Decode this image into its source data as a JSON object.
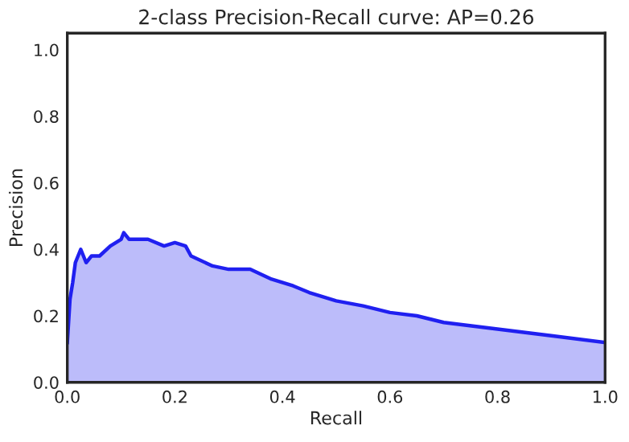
{
  "chart_data": {
    "type": "area",
    "title": "2-class Precision-Recall curve: AP=0.26",
    "xlabel": "Recall",
    "ylabel": "Precision",
    "series": [
      {
        "color": "#2020f0",
        "x": [
          0,
          0.005,
          0.01,
          0.015,
          0.025,
          0.035,
          0.045,
          0.06,
          0.08,
          0.1,
          0.105,
          0.115,
          0.15,
          0.18,
          0.2,
          0.22,
          0.23,
          0.27,
          0.3,
          0.34,
          0.38,
          0.42,
          0.45,
          0.5,
          0.55,
          0.6,
          0.65,
          0.7,
          0.8,
          0.9,
          1.0
        ],
        "values": [
          0.12,
          0.25,
          0.3,
          0.36,
          0.4,
          0.36,
          0.38,
          0.38,
          0.41,
          0.43,
          0.45,
          0.43,
          0.43,
          0.41,
          0.42,
          0.41,
          0.38,
          0.35,
          0.34,
          0.34,
          0.31,
          0.29,
          0.27,
          0.245,
          0.23,
          0.21,
          0.2,
          0.18,
          0.16,
          0.14,
          0.12
        ]
      }
    ],
    "xlim": [
      0,
      1
    ],
    "ylim": [
      0,
      1.05
    ],
    "xticks": [
      {
        "value": 0,
        "label": "0.0"
      },
      {
        "value": 0.2,
        "label": "0.2"
      },
      {
        "value": 0.4,
        "label": "0.4"
      },
      {
        "value": 0.6,
        "label": "0.6"
      },
      {
        "value": 0.8,
        "label": "0.8"
      },
      {
        "value": 1,
        "label": "1.0"
      }
    ],
    "yticks": [
      {
        "value": 0,
        "label": "0.0"
      },
      {
        "value": 0.2,
        "label": "0.2"
      },
      {
        "value": 0.4,
        "label": "0.4"
      },
      {
        "value": 0.6,
        "label": "0.6"
      },
      {
        "value": 0.8,
        "label": "0.8"
      },
      {
        "value": 1,
        "label": "1.0"
      }
    ],
    "grid": false,
    "line_style": "solid"
  }
}
